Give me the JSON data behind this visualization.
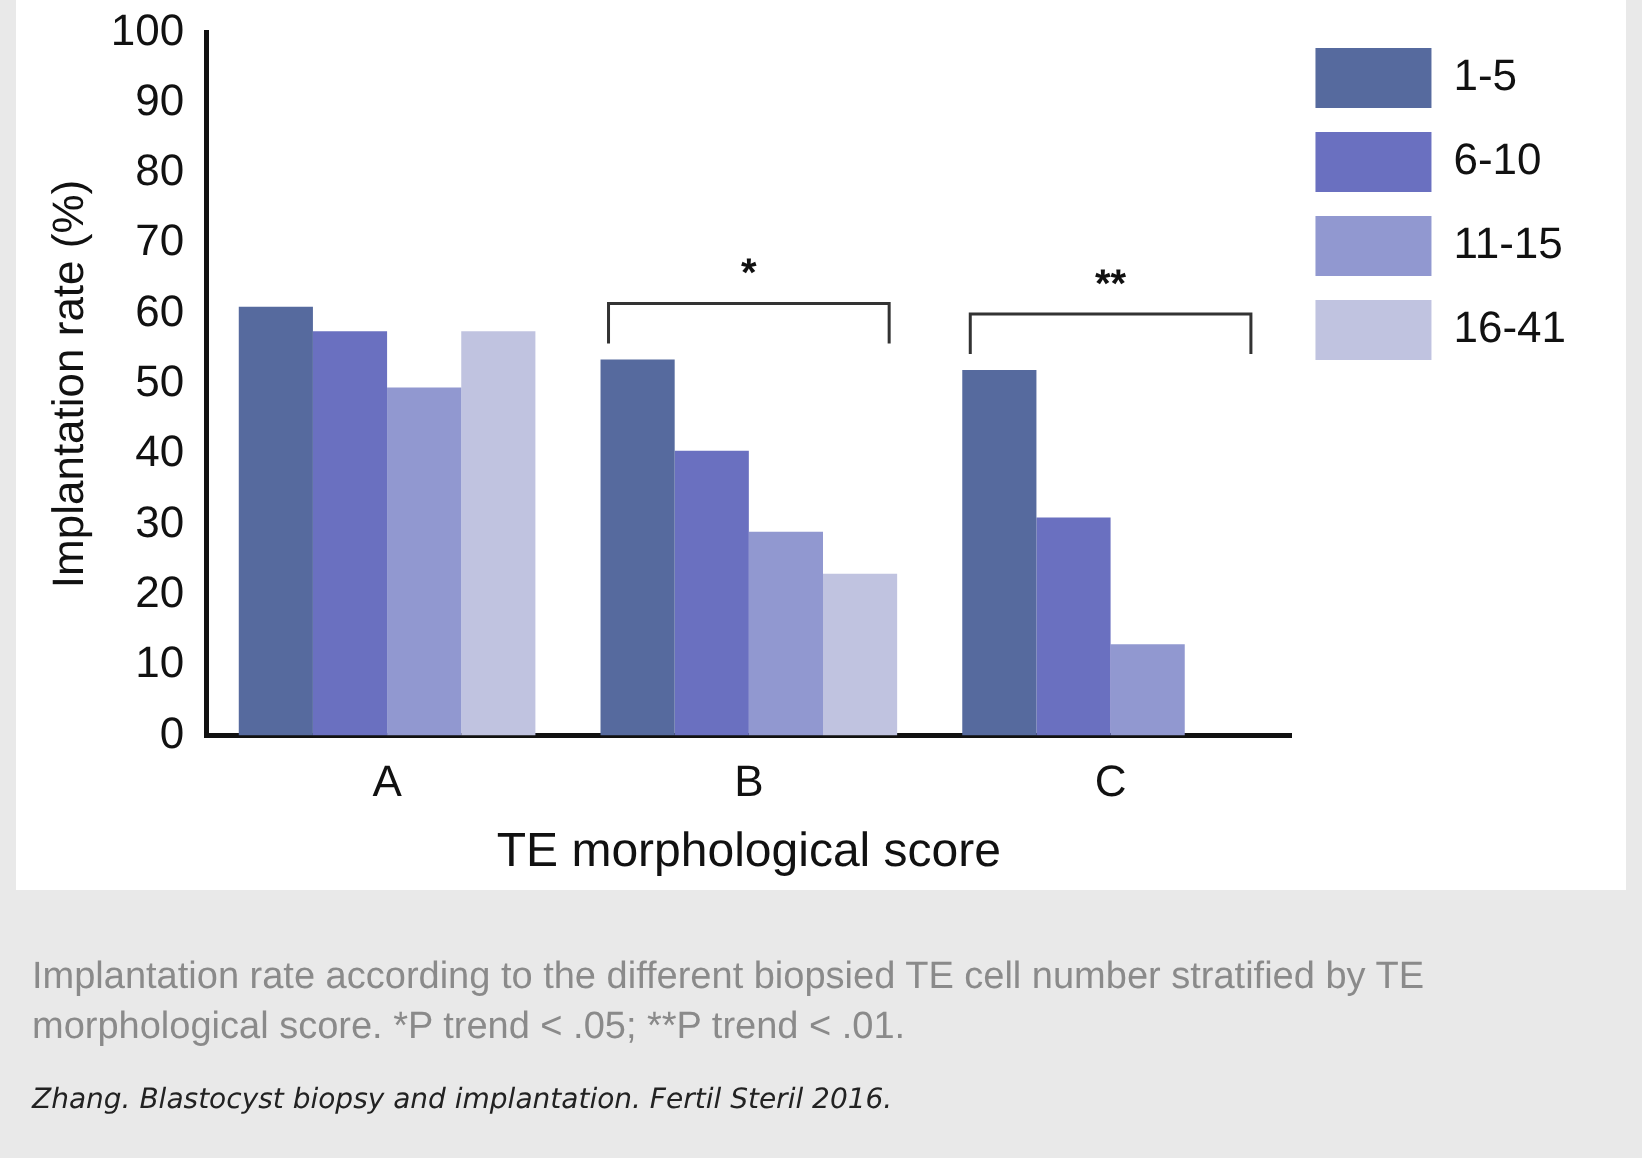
{
  "chart_data": {
    "type": "bar",
    "xlabel": "TE morphological score",
    "ylabel": "Implantation rate (%)",
    "categories": [
      "A",
      "B",
      "C"
    ],
    "series": [
      {
        "name": "1-5",
        "color": "#566a9e",
        "values": [
          61,
          53.5,
          52
        ]
      },
      {
        "name": "6-10",
        "color": "#6a70c0",
        "values": [
          57.5,
          40.5,
          31
        ]
      },
      {
        "name": "11-15",
        "color": "#9198d0",
        "values": [
          49.5,
          29,
          13
        ]
      },
      {
        "name": "16-41",
        "color": "#c0c3e0",
        "values": [
          57.5,
          23,
          null
        ]
      }
    ],
    "ylim": [
      0,
      100
    ],
    "yticks": [
      0,
      10,
      20,
      30,
      40,
      50,
      60,
      70,
      80,
      90,
      100
    ],
    "grid": false,
    "legend": "top right",
    "annotations": [
      "*",
      "**",
      "Implantation rate according to the different biopsied TE cell number stratified by TE morphological score. *P trend < .05; **P trend < .01.",
      "Zhang. Blastocyst biopsy and implantation. Fertil Steril 2016."
    ]
  }
}
